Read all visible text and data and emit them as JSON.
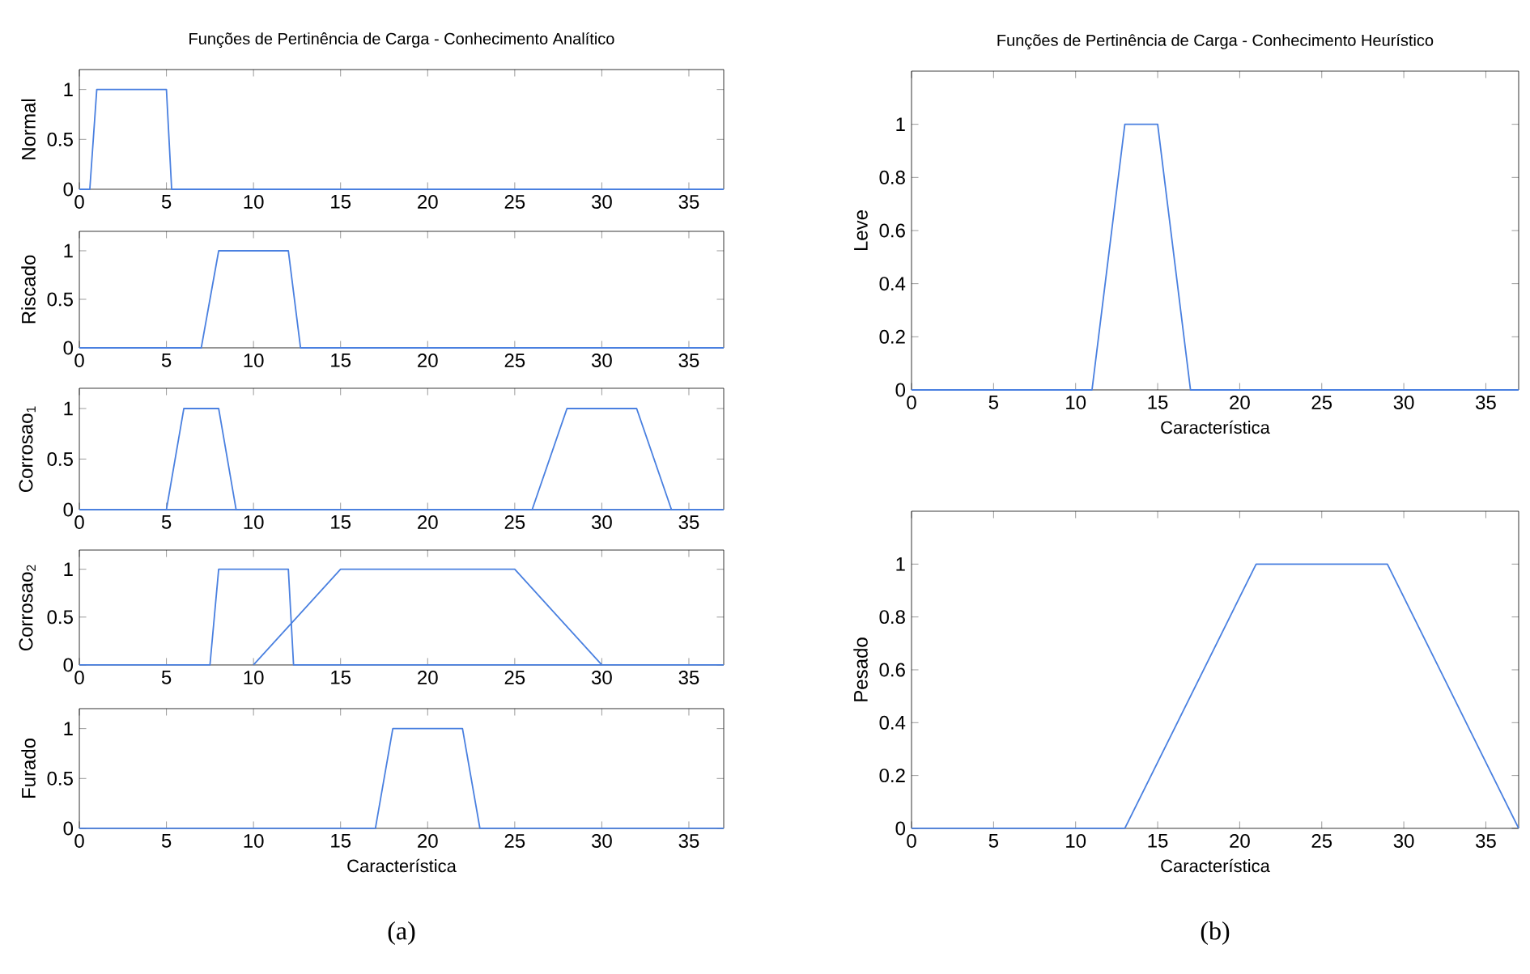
{
  "chart_data": [
    {
      "type": "line",
      "title": "Funções de Pertinência de Carga - Conhecimento Analítico",
      "ylabel": "Normal",
      "xlim": [
        0,
        37
      ],
      "ylim": [
        0,
        1.2
      ],
      "xticks": [
        0,
        5,
        10,
        15,
        20,
        25,
        30,
        35
      ],
      "yticks": [
        0,
        0.5,
        1
      ],
      "series": [
        {
          "color": "#4a80e0",
          "x": [
            0,
            0.6,
            1,
            5,
            5.3,
            37
          ],
          "values": [
            0,
            0,
            1,
            1,
            0,
            0
          ]
        }
      ]
    },
    {
      "type": "line",
      "ylabel": "Riscado",
      "xlim": [
        0,
        37
      ],
      "ylim": [
        0,
        1.2
      ],
      "xticks": [
        0,
        5,
        10,
        15,
        20,
        25,
        30,
        35
      ],
      "yticks": [
        0,
        0.5,
        1
      ],
      "series": [
        {
          "color": "#4a80e0",
          "x": [
            0,
            7,
            8,
            12,
            12.7,
            37
          ],
          "values": [
            0,
            0,
            1,
            1,
            0,
            0
          ]
        }
      ]
    },
    {
      "type": "line",
      "ylabel": "Corrosao$_{1}$",
      "xlim": [
        0,
        37
      ],
      "ylim": [
        0,
        1.2
      ],
      "xticks": [
        0,
        5,
        10,
        15,
        20,
        25,
        30,
        35
      ],
      "yticks": [
        0,
        0.5,
        1
      ],
      "series": [
        {
          "color": "#4a80e0",
          "x": [
            0,
            5,
            6,
            8,
            9,
            37
          ],
          "values": [
            0,
            0,
            1,
            1,
            0,
            0
          ]
        },
        {
          "color": "#4a80e0",
          "x": [
            0,
            26,
            28,
            32,
            34,
            37
          ],
          "values": [
            0,
            0,
            1,
            1,
            0,
            0
          ]
        }
      ]
    },
    {
      "type": "line",
      "ylabel": "Corrosao$_{2}$",
      "xlim": [
        0,
        37
      ],
      "ylim": [
        0,
        1.2
      ],
      "xticks": [
        0,
        5,
        10,
        15,
        20,
        25,
        30,
        35
      ],
      "yticks": [
        0,
        0.5,
        1
      ],
      "series": [
        {
          "color": "#4a80e0",
          "x": [
            0,
            7.5,
            8,
            12,
            12.3,
            37
          ],
          "values": [
            0,
            0,
            1,
            1,
            0,
            0
          ]
        },
        {
          "color": "#4a80e0",
          "x": [
            10,
            15,
            25,
            30
          ],
          "values": [
            0,
            1,
            1,
            0
          ]
        }
      ]
    },
    {
      "type": "line",
      "ylabel": "Furado",
      "xlabel": "Característica",
      "annotations": [
        "(a)"
      ],
      "xlim": [
        0,
        37
      ],
      "ylim": [
        0,
        1.2
      ],
      "xticks": [
        0,
        5,
        10,
        15,
        20,
        25,
        30,
        35
      ],
      "yticks": [
        0,
        0.5,
        1
      ],
      "series": [
        {
          "color": "#4a80e0",
          "x": [
            0,
            17,
            18,
            22,
            23,
            37
          ],
          "values": [
            0,
            0,
            1,
            1,
            0,
            0
          ]
        }
      ]
    },
    {
      "type": "line",
      "title": "Funções de Pertinência de Carga - Conhecimento Heurístico",
      "ylabel": "Leve",
      "xlabel": "Característica",
      "xlim": [
        0,
        37
      ],
      "ylim": [
        0,
        1.2
      ],
      "xticks": [
        0,
        5,
        10,
        15,
        20,
        25,
        30,
        35
      ],
      "yticks": [
        0,
        0.2,
        0.4,
        0.6,
        0.8,
        1
      ],
      "series": [
        {
          "color": "#4a80e0",
          "x": [
            0,
            11,
            13,
            15,
            17,
            37
          ],
          "values": [
            0,
            0,
            1,
            1,
            0,
            0
          ]
        }
      ]
    },
    {
      "type": "line",
      "ylabel": "Pesado",
      "xlabel": "Característica",
      "annotations": [
        "(b)"
      ],
      "xlim": [
        0,
        37
      ],
      "ylim": [
        0,
        1.2
      ],
      "xticks": [
        0,
        5,
        10,
        15,
        20,
        25,
        30,
        35
      ],
      "yticks": [
        0,
        0.2,
        0.4,
        0.6,
        0.8,
        1
      ],
      "series": [
        {
          "color": "#4a80e0",
          "x": [
            0,
            13,
            21,
            29,
            37
          ],
          "values": [
            0,
            0,
            1,
            1,
            0
          ]
        }
      ]
    }
  ]
}
